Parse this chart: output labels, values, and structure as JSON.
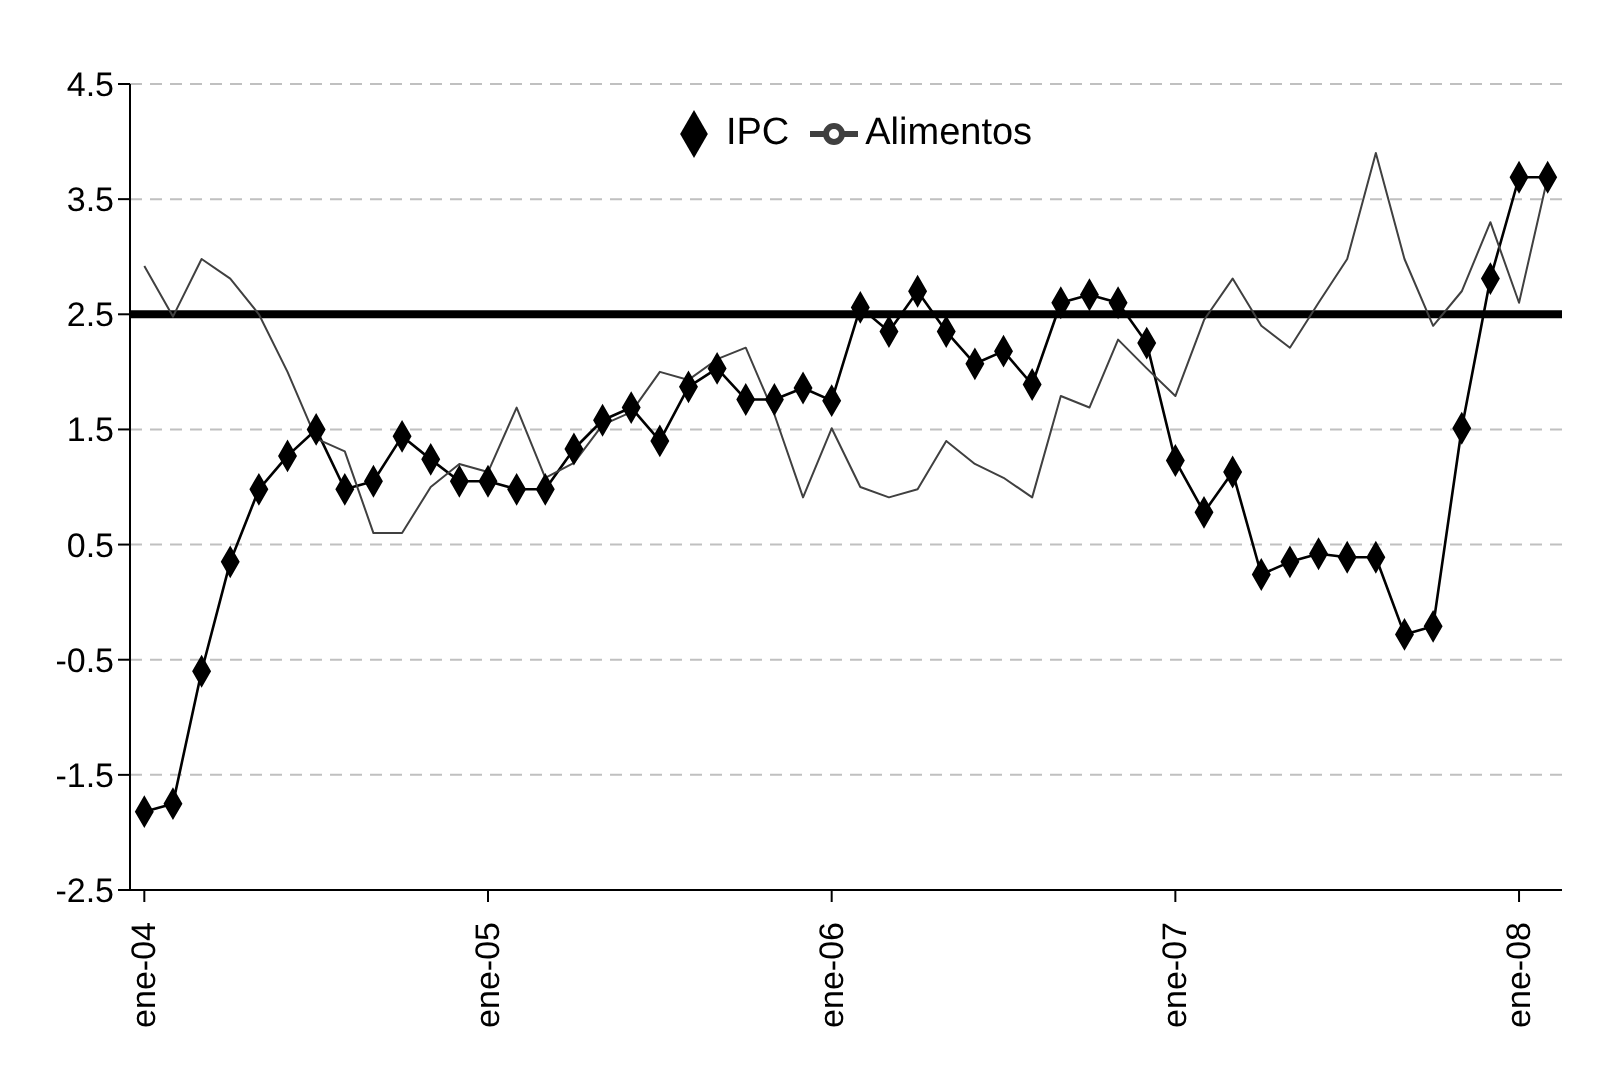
{
  "chart_data": {
    "type": "line",
    "categories": [
      "ene-04",
      null,
      null,
      null,
      null,
      null,
      null,
      null,
      null,
      null,
      null,
      null,
      "ene-05",
      null,
      null,
      null,
      null,
      null,
      null,
      null,
      null,
      null,
      null,
      null,
      "ene-06",
      null,
      null,
      null,
      null,
      null,
      null,
      null,
      null,
      null,
      null,
      null,
      "ene-07",
      null,
      null,
      null,
      null,
      null,
      null,
      null,
      null,
      null,
      null,
      null,
      "ene-08",
      null
    ],
    "series": [
      {
        "name": "IPC",
        "color": "#000000",
        "marker": "diamond",
        "values": [
          -1.82,
          -1.75,
          -0.6,
          0.35,
          0.98,
          1.27,
          1.5,
          0.98,
          1.05,
          1.44,
          1.24,
          1.05,
          1.05,
          0.98,
          0.98,
          1.33,
          1.58,
          1.69,
          1.4,
          1.87,
          2.03,
          1.76,
          1.76,
          1.86,
          1.75,
          2.56,
          2.35,
          2.7,
          2.35,
          2.07,
          2.18,
          1.89,
          2.6,
          2.67,
          2.6,
          2.25,
          1.23,
          0.78,
          1.13,
          0.24,
          0.35,
          0.42,
          0.39,
          0.39,
          -0.28,
          -0.21,
          1.51,
          2.81,
          3.69,
          3.69
        ]
      },
      {
        "name": "Alimentos",
        "color": "#404040",
        "marker": "none",
        "values": [
          2.92,
          2.48,
          2.98,
          2.81,
          2.5,
          2.0,
          1.42,
          1.31,
          0.6,
          0.6,
          1.0,
          1.2,
          1.13,
          1.69,
          1.08,
          1.21,
          1.54,
          1.65,
          2.0,
          1.93,
          2.11,
          2.21,
          1.63,
          0.91,
          1.51,
          1.0,
          0.91,
          0.98,
          1.4,
          1.2,
          1.08,
          0.91,
          1.79,
          1.69,
          2.28,
          2.03,
          1.79,
          2.45,
          2.81,
          2.4,
          2.21,
          2.6,
          2.98,
          3.9,
          2.98,
          2.4,
          2.7,
          3.3,
          2.6,
          3.69
        ]
      }
    ],
    "ylim": [
      -2.5,
      4.5
    ],
    "yticks": [
      4.5,
      3.5,
      2.5,
      1.5,
      0.5,
      -0.5,
      -1.5,
      -2.5
    ],
    "grid": "y",
    "legend": "top",
    "ref_lines": [
      {
        "axis": "y",
        "value": 2.5,
        "color": "#000000"
      }
    ]
  }
}
